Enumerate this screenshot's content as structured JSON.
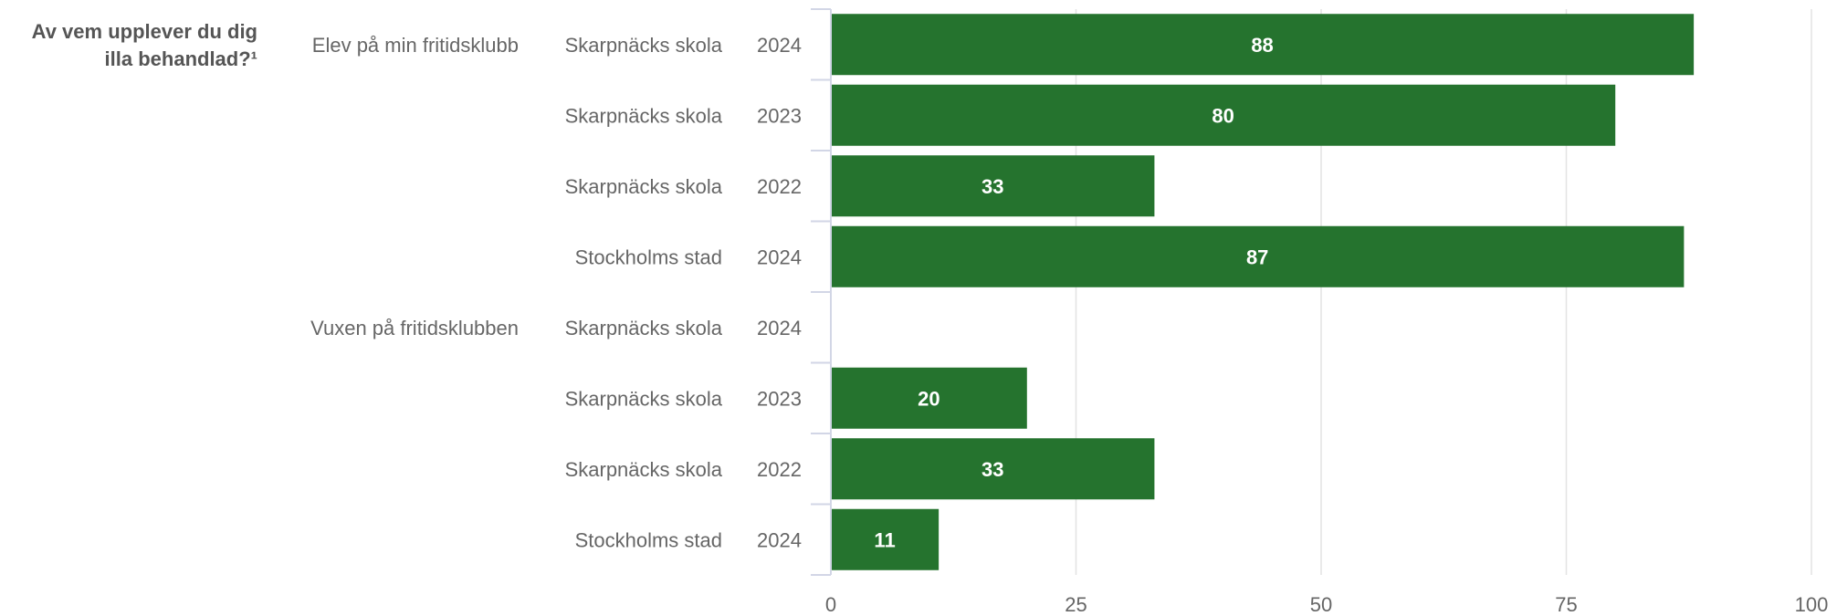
{
  "chart_data": {
    "type": "bar",
    "orientation": "horizontal",
    "question_lines": [
      "Av vem upplever du dig",
      "illa behandlad?¹"
    ],
    "groups": [
      {
        "label": "Elev på min fritidsklubb",
        "rows": [
          {
            "entity": "Skarpnäcks skola",
            "year": "2024",
            "value": 88,
            "label": "88"
          },
          {
            "entity": "Skarpnäcks skola",
            "year": "2023",
            "value": 80,
            "label": "80"
          },
          {
            "entity": "Skarpnäcks skola",
            "year": "2022",
            "value": 33,
            "label": "33"
          },
          {
            "entity": "Stockholms stad",
            "year": "2024",
            "value": 87,
            "label": "87"
          }
        ]
      },
      {
        "label": "Vuxen på fritidsklubben",
        "rows": [
          {
            "entity": "Skarpnäcks skola",
            "year": "2024",
            "value": null,
            "label": ""
          },
          {
            "entity": "Skarpnäcks skola",
            "year": "2023",
            "value": 20,
            "label": "20"
          },
          {
            "entity": "Skarpnäcks skola",
            "year": "2022",
            "value": 33,
            "label": "33"
          },
          {
            "entity": "Stockholms stad",
            "year": "2024",
            "value": 11,
            "label": "11"
          }
        ]
      }
    ],
    "xlim": [
      0,
      100
    ],
    "xticks": [
      "0",
      "25",
      "50",
      "75",
      "100"
    ],
    "grid": true,
    "colors": {
      "bar": "#25732e",
      "grid": "#e3e3e3",
      "axis": "#d2d6e6"
    }
  }
}
